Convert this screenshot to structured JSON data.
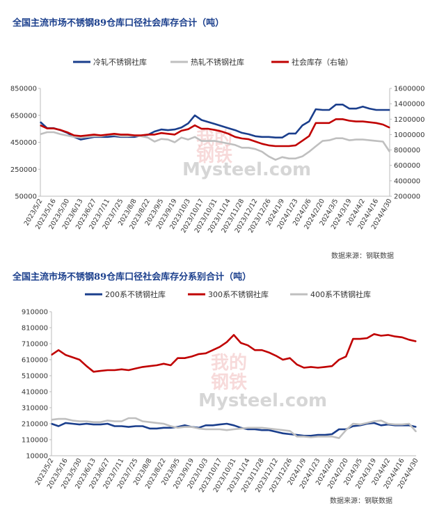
{
  "chart_data": [
    {
      "type": "line",
      "title": "全国主流市场不锈钢89仓库口径社会库存合计（吨）",
      "source": "数据来源：钢联数据",
      "watermark": {
        "cn_top": "我的",
        "cn_bottom": "钢铁",
        "en": "Mysteel.com"
      },
      "legend_position": "top",
      "x": [
        "2023/5/2",
        "2023/5/9",
        "2023/5/16",
        "2023/5/23",
        "2023/5/30",
        "2023/6/6",
        "2023/6/13",
        "2023/6/20",
        "2023/6/27",
        "2023/7/4",
        "2023/7/11",
        "2023/7/18",
        "2023/7/25",
        "2023/8/1",
        "2023/8/8",
        "2023/8/15",
        "2023/8/22",
        "2023/8/29",
        "2023/9/5",
        "2023/9/12",
        "2023/9/19",
        "2023/9/26",
        "2023/10/3",
        "2023/10/10",
        "2023/10/17",
        "2023/10/24",
        "2023/10/31",
        "2023/11/7",
        "2023/11/14",
        "2023/11/21",
        "2023/11/28",
        "2023/12/5",
        "2023/12/12",
        "2023/12/19",
        "2023/12/26",
        "2024/1/2",
        "2024/1/9",
        "2024/1/16",
        "2024/1/23",
        "2024/1/30",
        "2024/2/6",
        "2024/2/13",
        "2024/2/20",
        "2024/2/27",
        "2024/3/5",
        "2024/3/12",
        "2024/3/19",
        "2024/3/26",
        "2024/4/2",
        "2024/4/9",
        "2024/4/16",
        "2024/4/23",
        "2024/4/30"
      ],
      "x_tick_labels": [
        "2023/5/2",
        "2023/5/16",
        "2023/5/30",
        "2023/6/13",
        "2023/6/27",
        "2023/7/11",
        "2023/7/25",
        "2023/8/8",
        "2023/8/22",
        "2023/9/5",
        "2023/9/19",
        "2023/10/3",
        "2023/10/17",
        "2023/10/31",
        "2023/11/14",
        "2023/11/28",
        "2023/12/12",
        "2023/12/26",
        "2024/1/9",
        "2024/1/23",
        "2024/2/6",
        "2024/2/20",
        "2024/3/5",
        "2024/3/19",
        "2024/4/2",
        "2024/4/16",
        "2024/4/30"
      ],
      "y_left_ticks": [
        "850000",
        "650000",
        "450000",
        "250000",
        "50000"
      ],
      "y_left_lim": [
        50000,
        850000
      ],
      "y_right_ticks": [
        "1600000",
        "1400000",
        "1200000",
        "1000000",
        "800000",
        "600000",
        "400000",
        "200000"
      ],
      "y_right_lim": [
        200000,
        1600000
      ],
      "grid": false,
      "series": [
        {
          "name": "冷轧不锈钢社库",
          "axis": "left",
          "color": "#1a3e8c",
          "values": [
            600000,
            555000,
            555000,
            540000,
            520000,
            490000,
            470000,
            480000,
            490000,
            490000,
            490000,
            495000,
            490000,
            490000,
            490000,
            500000,
            505000,
            530000,
            545000,
            540000,
            545000,
            560000,
            590000,
            650000,
            615000,
            600000,
            585000,
            570000,
            555000,
            540000,
            520000,
            510000,
            495000,
            490000,
            490000,
            485000,
            485000,
            515000,
            515000,
            575000,
            605000,
            695000,
            690000,
            690000,
            730000,
            730000,
            700000,
            700000,
            715000,
            700000,
            690000,
            690000,
            690000
          ]
        },
        {
          "name": "热轧不锈钢社库",
          "axis": "left",
          "color": "#bfbfbf",
          "values": [
            510000,
            525000,
            525000,
            510000,
            500000,
            490000,
            485000,
            490000,
            495000,
            495000,
            505000,
            505000,
            495000,
            495000,
            500000,
            495000,
            485000,
            455000,
            475000,
            470000,
            450000,
            485000,
            470000,
            490000,
            460000,
            460000,
            460000,
            450000,
            440000,
            430000,
            410000,
            410000,
            400000,
            380000,
            345000,
            320000,
            340000,
            330000,
            330000,
            345000,
            380000,
            420000,
            460000,
            465000,
            480000,
            480000,
            465000,
            470000,
            470000,
            465000,
            460000,
            455000,
            380000
          ]
        },
        {
          "name": "社会库存（右轴）",
          "axis": "right",
          "color": "#c00000",
          "values": [
            1120000,
            1080000,
            1080000,
            1060000,
            1030000,
            990000,
            980000,
            990000,
            1000000,
            990000,
            1000000,
            1010000,
            1000000,
            1000000,
            990000,
            990000,
            1000000,
            1000000,
            1020000,
            1010000,
            1000000,
            1050000,
            1070000,
            1120000,
            1075000,
            1075000,
            1060000,
            1040000,
            1010000,
            970000,
            950000,
            940000,
            910000,
            880000,
            860000,
            850000,
            850000,
            850000,
            860000,
            920000,
            980000,
            1150000,
            1150000,
            1150000,
            1200000,
            1200000,
            1180000,
            1170000,
            1170000,
            1160000,
            1150000,
            1130000,
            1090000
          ]
        }
      ]
    },
    {
      "type": "line",
      "title": "全国主流市场不锈钢89仓库口径社会库存分系别合计（吨）",
      "source": "数据来源：钢联数据",
      "watermark": {
        "cn_top": "我的",
        "cn_bottom": "钢铁",
        "en": "Mysteel.com"
      },
      "legend_position": "top",
      "x": [
        "2023/5/2",
        "2023/5/9",
        "2023/5/16",
        "2023/5/23",
        "2023/5/30",
        "2023/6/6",
        "2023/6/13",
        "2023/6/20",
        "2023/6/27",
        "2023/7/4",
        "2023/7/11",
        "2023/7/18",
        "2023/7/25",
        "2023/8/1",
        "2023/8/8",
        "2023/8/15",
        "2023/8/22",
        "2023/8/29",
        "2023/9/5",
        "2023/9/12",
        "2023/9/19",
        "2023/9/26",
        "2023/10/3",
        "2023/10/10",
        "2023/10/17",
        "2023/10/24",
        "2023/10/31",
        "2023/11/7",
        "2023/11/14",
        "2023/11/21",
        "2023/11/28",
        "2023/12/5",
        "2023/12/12",
        "2023/12/19",
        "2023/12/26",
        "2024/1/2",
        "2024/1/9",
        "2024/1/16",
        "2024/1/23",
        "2024/1/30",
        "2024/2/6",
        "2024/2/13",
        "2024/2/20",
        "2024/2/27",
        "2024/3/5",
        "2024/3/12",
        "2024/3/19",
        "2024/3/26",
        "2024/4/2",
        "2024/4/9",
        "2024/4/16",
        "2024/4/23",
        "2024/4/30"
      ],
      "x_tick_labels": [
        "2023/5/2",
        "2023/5/16",
        "2023/5/30",
        "2023/6/13",
        "2023/6/27",
        "2023/7/11",
        "2023/7/25",
        "2023/8/8",
        "2023/8/22",
        "2023/9/5",
        "2023/9/19",
        "2023/10/3",
        "2023/10/17",
        "2023/10/31",
        "2023/11/14",
        "2023/11/28",
        "2023/12/12",
        "2023/12/26",
        "2024/1/9",
        "2024/1/23",
        "2024/2/6",
        "2024/2/20",
        "2024/3/5",
        "2024/3/19",
        "2024/4/2",
        "2024/4/16",
        "2024/4/30"
      ],
      "y_ticks": [
        "910000",
        "810000",
        "710000",
        "610000",
        "510000",
        "410000",
        "310000",
        "210000",
        "110000",
        "10000"
      ],
      "y_lim": [
        10000,
        910000
      ],
      "grid": false,
      "series": [
        {
          "name": "200系不锈钢社库",
          "color": "#1a3e8c",
          "values": [
            210000,
            195000,
            215000,
            210000,
            205000,
            210000,
            205000,
            205000,
            210000,
            195000,
            195000,
            190000,
            195000,
            195000,
            180000,
            180000,
            185000,
            185000,
            190000,
            200000,
            190000,
            185000,
            200000,
            200000,
            205000,
            210000,
            200000,
            185000,
            175000,
            175000,
            170000,
            170000,
            160000,
            150000,
            145000,
            140000,
            135000,
            135000,
            140000,
            140000,
            145000,
            175000,
            175000,
            195000,
            200000,
            210000,
            215000,
            200000,
            205000,
            200000,
            200000,
            200000,
            190000
          ]
        },
        {
          "name": "300系不锈钢社库",
          "color": "#c00000",
          "values": [
            640000,
            670000,
            640000,
            625000,
            610000,
            570000,
            535000,
            540000,
            545000,
            545000,
            550000,
            545000,
            555000,
            565000,
            570000,
            575000,
            585000,
            575000,
            620000,
            620000,
            630000,
            645000,
            650000,
            670000,
            690000,
            720000,
            765000,
            715000,
            700000,
            670000,
            670000,
            655000,
            635000,
            610000,
            620000,
            580000,
            560000,
            565000,
            560000,
            565000,
            570000,
            610000,
            630000,
            740000,
            740000,
            745000,
            770000,
            760000,
            765000,
            755000,
            750000,
            735000,
            725000
          ]
        },
        {
          "name": "400系不锈钢社库",
          "color": "#bfbfbf",
          "values": [
            235000,
            240000,
            240000,
            230000,
            225000,
            225000,
            220000,
            220000,
            230000,
            225000,
            225000,
            245000,
            245000,
            225000,
            220000,
            215000,
            210000,
            195000,
            185000,
            190000,
            190000,
            180000,
            175000,
            175000,
            175000,
            170000,
            175000,
            180000,
            185000,
            185000,
            185000,
            180000,
            175000,
            170000,
            165000,
            130000,
            130000,
            125000,
            130000,
            130000,
            130000,
            120000,
            170000,
            210000,
            205000,
            215000,
            225000,
            230000,
            210000,
            205000,
            205000,
            210000,
            160000
          ]
        }
      ]
    }
  ]
}
